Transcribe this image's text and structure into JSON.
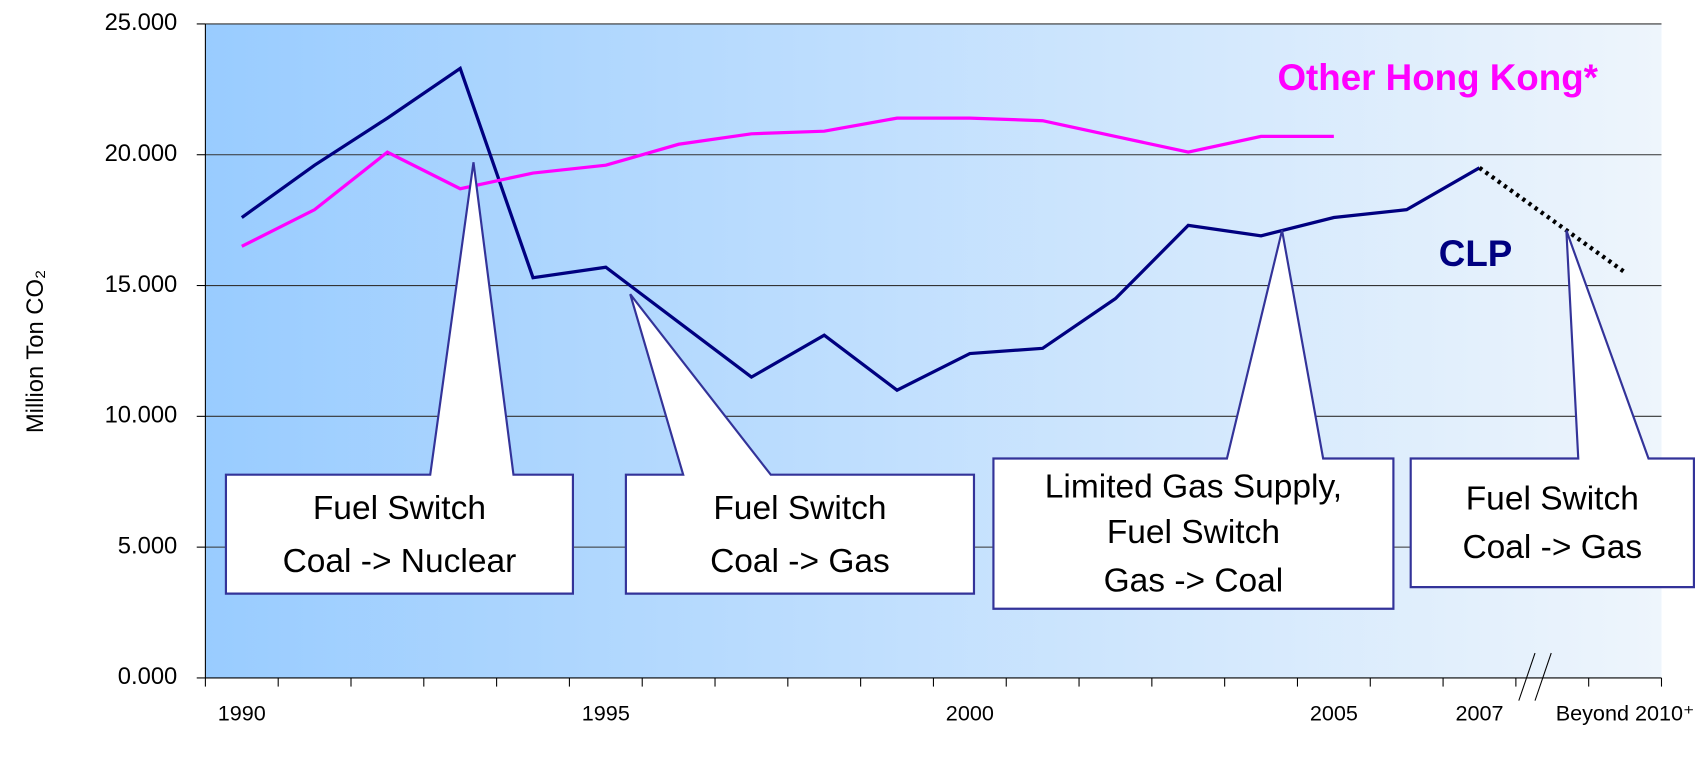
{
  "chart_data": {
    "type": "line",
    "y_label": "Million Ton CO₂",
    "categories": [
      "1990",
      null,
      null,
      null,
      null,
      "1995",
      null,
      null,
      null,
      null,
      "2000",
      null,
      null,
      null,
      null,
      "2005",
      null,
      "2007",
      null,
      "Beyond 2010⁺"
    ],
    "series": [
      {
        "name": "CLP",
        "color": "#000080",
        "connect_gaps": true,
        "dotted_from_index": 17,
        "dotted_color": "#000000",
        "values": [
          17.6,
          19.6,
          21.4,
          23.3,
          15.3,
          15.7,
          13.6,
          11.5,
          13.1,
          11.0,
          12.4,
          12.6,
          14.5,
          17.3,
          16.9,
          17.6,
          17.9,
          19.5,
          null,
          15.5
        ]
      },
      {
        "name": "Other Hong Kong*",
        "color": "#ff00ff",
        "values": [
          16.5,
          17.9,
          20.1,
          18.7,
          19.3,
          19.6,
          20.4,
          20.8,
          20.9,
          21.4,
          21.4,
          21.3,
          20.7,
          20.1,
          20.7,
          20.7,
          null,
          null,
          null,
          null
        ]
      }
    ],
    "ylim": [
      0,
      25
    ],
    "yticks": [
      {
        "value": 0,
        "label": "0.000"
      },
      {
        "value": 5,
        "label": "5.000"
      },
      {
        "value": 10,
        "label": "10.000"
      },
      {
        "value": 15,
        "label": "15.000"
      },
      {
        "value": 20,
        "label": "20.000"
      },
      {
        "value": 25,
        "label": "25.000"
      }
    ],
    "grid": true,
    "annotations": [
      {
        "lines": [
          "Fuel Switch",
          "Coal -> Nuclear"
        ]
      },
      {
        "lines": [
          "Fuel Switch",
          "Coal -> Gas"
        ]
      },
      {
        "lines": [
          "Limited Gas Supply,",
          "Fuel Switch",
          "Gas -> Coal"
        ]
      },
      {
        "lines": [
          "Fuel Switch",
          "Coal -> Gas"
        ]
      }
    ]
  }
}
